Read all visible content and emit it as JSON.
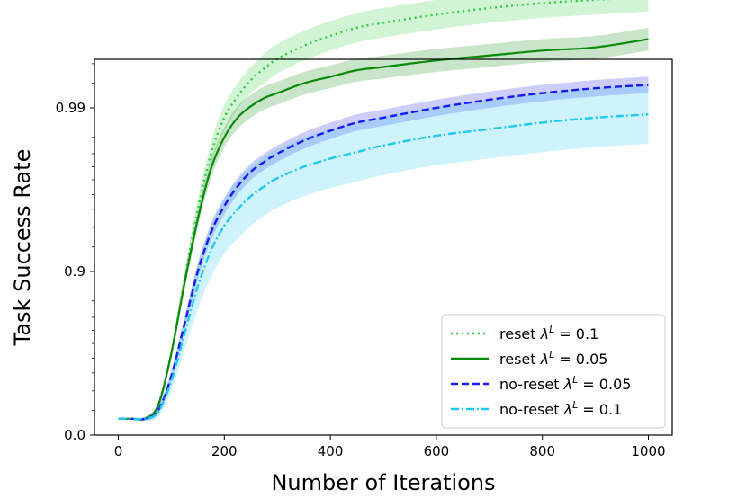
{
  "chart_data": {
    "type": "line",
    "title": "",
    "xlabel": "Number of Iterations",
    "ylabel": "Task Success Rate",
    "xlim": [
      -45,
      1045
    ],
    "y_scale": "piecewise (tick positions at 0.0, 0.9, 0.99)",
    "x_ticks": [
      0,
      200,
      400,
      600,
      800,
      1000
    ],
    "x_tick_labels": [
      "0",
      "200",
      "400",
      "600",
      "800",
      "1000"
    ],
    "y_ticks": [
      0.0,
      0.9,
      0.99
    ],
    "y_tick_labels": [
      "0.0",
      "0.9",
      "0.99"
    ],
    "y_tick_units": [
      0,
      1,
      2
    ],
    "legend_position": "lower-right",
    "legend": [
      {
        "prefix": "reset ",
        "lambda": "0.1"
      },
      {
        "prefix": "reset ",
        "lambda": "0.05"
      },
      {
        "prefix": "no-reset ",
        "lambda": "0.05"
      },
      {
        "prefix": "no-reset ",
        "lambda": "0.1"
      }
    ],
    "x": [
      0,
      25,
      50,
      75,
      100,
      125,
      150,
      175,
      200,
      225,
      250,
      275,
      300,
      350,
      400,
      450,
      500,
      600,
      700,
      800,
      900,
      1000
    ],
    "series": [
      {
        "name": "reset λ^L = 0.1",
        "color": "#2ecc40",
        "style": "dotted",
        "values_units": [
          0.1,
          0.1,
          0.1,
          0.18,
          0.5,
          0.95,
          1.38,
          1.72,
          1.94,
          2.07,
          2.17,
          2.24,
          2.3,
          2.38,
          2.44,
          2.49,
          2.52,
          2.57,
          2.61,
          2.64,
          2.66,
          2.68
        ],
        "band_halfwidth_units": [
          0.0,
          0.0,
          0.01,
          0.02,
          0.03,
          0.05,
          0.06,
          0.07,
          0.08,
          0.08,
          0.08,
          0.09,
          0.09,
          0.09,
          0.09,
          0.09,
          0.09,
          0.09,
          0.09,
          0.09,
          0.09,
          0.09
        ]
      },
      {
        "name": "reset λ^L = 0.05",
        "color": "#0a8a0a",
        "style": "solid",
        "values_units": [
          0.1,
          0.1,
          0.1,
          0.18,
          0.5,
          0.93,
          1.32,
          1.63,
          1.82,
          1.94,
          2.01,
          2.06,
          2.09,
          2.15,
          2.19,
          2.23,
          2.25,
          2.29,
          2.32,
          2.35,
          2.37,
          2.42
        ],
        "band_halfwidth_units": [
          0.0,
          0.0,
          0.01,
          0.02,
          0.03,
          0.04,
          0.05,
          0.06,
          0.06,
          0.07,
          0.07,
          0.07,
          0.07,
          0.07,
          0.07,
          0.07,
          0.07,
          0.07,
          0.07,
          0.07,
          0.07,
          0.07
        ]
      },
      {
        "name": "no-reset λ^L = 0.05",
        "color": "#1a1aee",
        "style": "dashed",
        "values_units": [
          0.1,
          0.1,
          0.1,
          0.15,
          0.36,
          0.68,
          1.0,
          1.24,
          1.4,
          1.52,
          1.61,
          1.67,
          1.72,
          1.8,
          1.86,
          1.91,
          1.94,
          2.0,
          2.05,
          2.09,
          2.12,
          2.14
        ],
        "band_halfwidth_units": [
          0.0,
          0.0,
          0.01,
          0.02,
          0.03,
          0.04,
          0.05,
          0.05,
          0.05,
          0.05,
          0.05,
          0.05,
          0.05,
          0.05,
          0.05,
          0.05,
          0.05,
          0.05,
          0.05,
          0.05,
          0.05,
          0.05
        ]
      },
      {
        "name": "no-reset λ^L = 0.1",
        "color": "#1ec8f0",
        "style": "dashdot",
        "values_units": [
          0.1,
          0.1,
          0.1,
          0.14,
          0.33,
          0.62,
          0.91,
          1.13,
          1.28,
          1.38,
          1.46,
          1.52,
          1.57,
          1.64,
          1.69,
          1.73,
          1.77,
          1.83,
          1.87,
          1.91,
          1.94,
          1.96
        ],
        "band_halfwidth_units": [
          0.0,
          0.0,
          0.01,
          0.03,
          0.06,
          0.1,
          0.14,
          0.16,
          0.17,
          0.18,
          0.18,
          0.18,
          0.18,
          0.18,
          0.18,
          0.18,
          0.18,
          0.18,
          0.18,
          0.18,
          0.18,
          0.18
        ]
      }
    ]
  }
}
